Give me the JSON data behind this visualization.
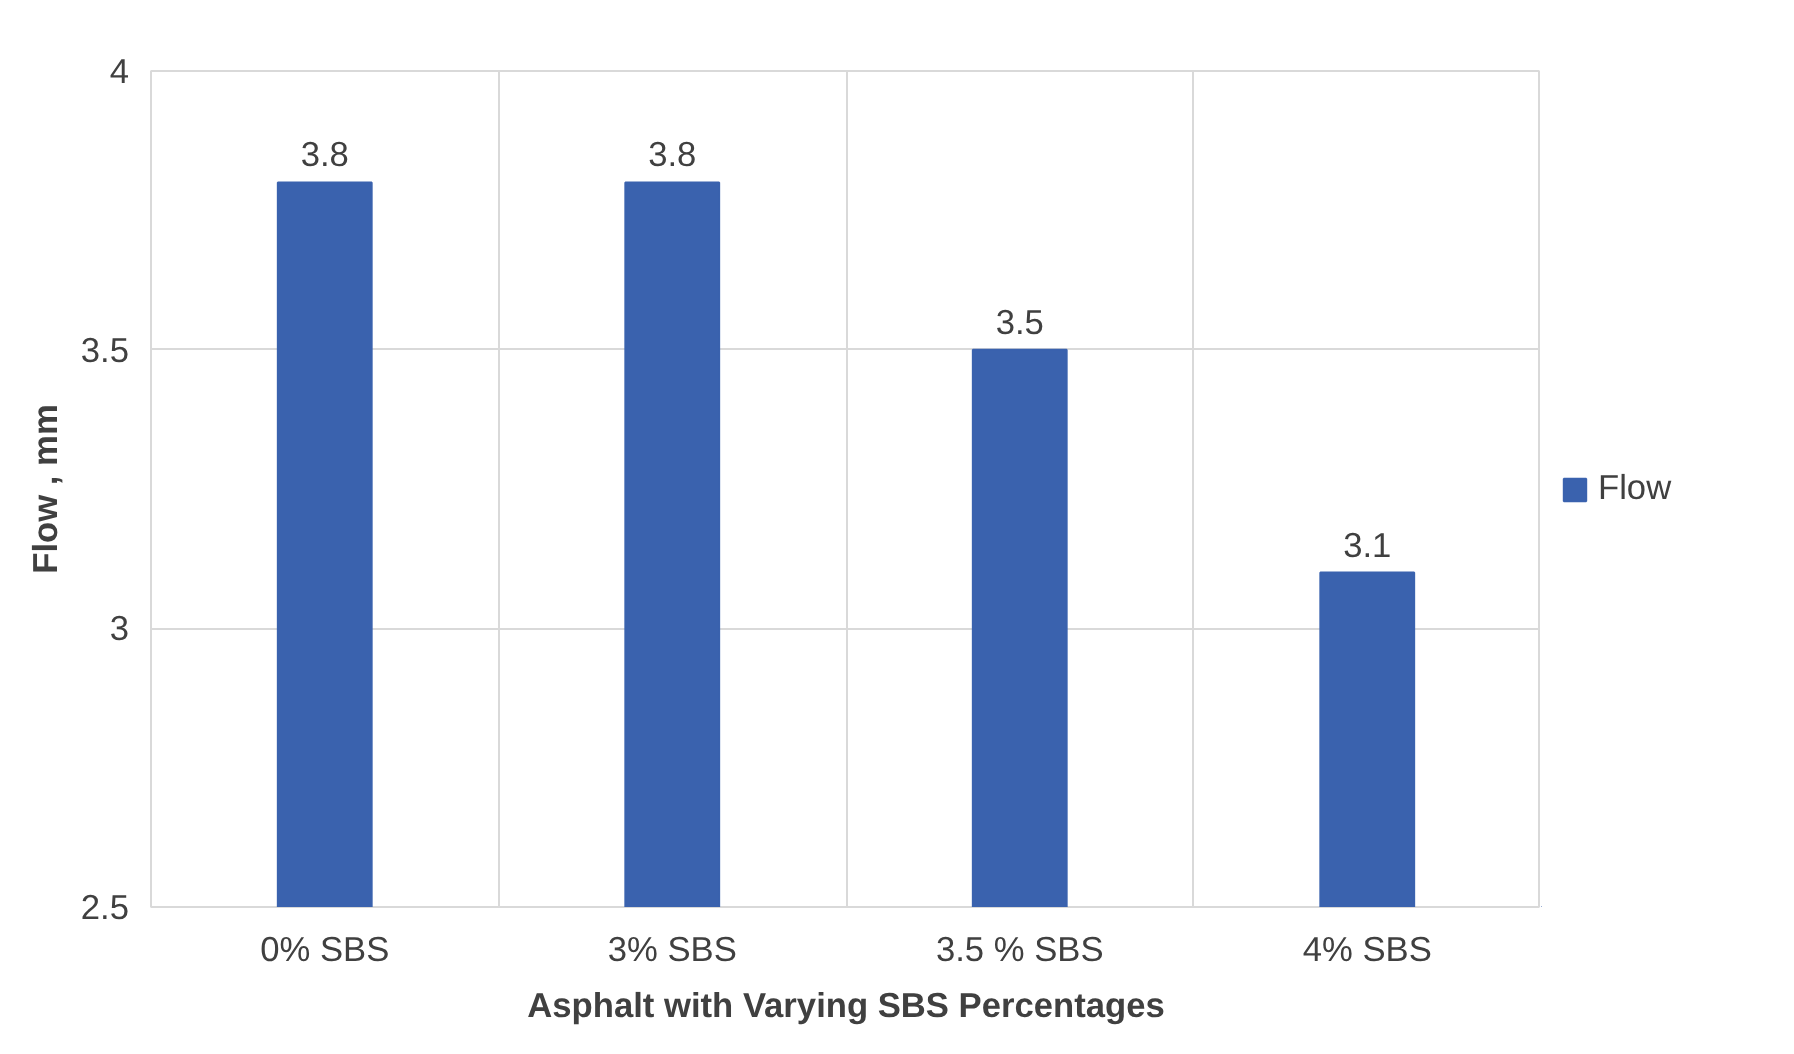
{
  "chart_data": {
    "type": "bar",
    "xlabel": "Asphalt with Varying SBS Percentages",
    "ylabel": "Flow , mm",
    "categories": [
      "0% SBS",
      "3% SBS",
      "3.5 % SBS",
      "4% SBS"
    ],
    "series": [
      {
        "name": "Flow",
        "color": "#3a62ae",
        "values": [
          3.8,
          3.8,
          3.5,
          3.1
        ]
      }
    ],
    "ylim": [
      2.5,
      4
    ],
    "yticks": [
      2.5,
      3,
      3.5,
      4
    ],
    "grid": true,
    "legend": "right",
    "data_labels": true
  }
}
